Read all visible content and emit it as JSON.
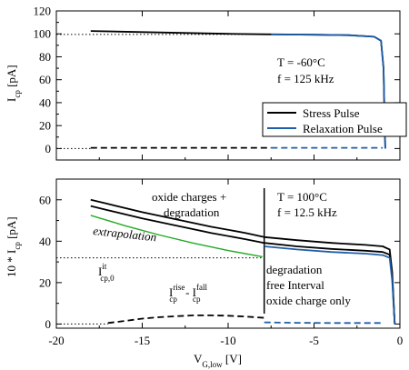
{
  "colors": {
    "stress": "#000000",
    "relaxation": "#1f5ea8",
    "extrapolation": "#22aa22",
    "reference": "#000000"
  },
  "chart_data": [
    {
      "type": "line",
      "panel": "top",
      "xlim": [
        -20,
        0
      ],
      "ylim": [
        -10,
        120
      ],
      "xticks": [
        -20,
        -15,
        -10,
        -5,
        0
      ],
      "yticks": [
        0,
        20,
        40,
        60,
        80,
        100,
        120
      ],
      "xtick_labels_shown": false,
      "ylabel_main": "I",
      "ylabel_sub": "cp",
      "ylabel_unit": " [pA]",
      "annotations": {
        "line1": "T = -60°C",
        "line2": "f = 125 kHz"
      },
      "legend": {
        "placement": "right-middle",
        "entries": [
          "Stress Pulse",
          "Relaxation Pulse"
        ]
      },
      "series": [
        {
          "name": "Stress Pulse",
          "style": "solid",
          "x": [
            -18,
            -15,
            -10,
            -8,
            -5,
            -3,
            -1.5,
            -1.1,
            -0.95,
            -0.9,
            -0.85
          ],
          "y": [
            102.5,
            101.5,
            100.0,
            99.6,
            99.2,
            98.8,
            97.5,
            94,
            70,
            30,
            0
          ]
        },
        {
          "name": "Relaxation Pulse",
          "style": "solid",
          "x": [
            -7.5,
            -5,
            -3,
            -1.5,
            -1.1,
            -0.95,
            -0.9,
            -0.85
          ],
          "y": [
            99.5,
            99.2,
            98.8,
            97.5,
            94,
            70,
            30,
            0
          ]
        },
        {
          "name": "reference",
          "style": "dotted",
          "x": [
            -20,
            -8
          ],
          "y": [
            99.5,
            99.5
          ]
        },
        {
          "name": "stress-baseline",
          "style": "dashed",
          "x": [
            -18,
            -7.5
          ],
          "y": [
            0.6,
            0.6
          ]
        },
        {
          "name": "relaxation-baseline",
          "style": "dashed",
          "x": [
            -7.5,
            -1
          ],
          "y": [
            0.6,
            0.6
          ]
        },
        {
          "name": "zero",
          "style": "dotted",
          "x": [
            -20,
            -18
          ],
          "y": [
            0,
            0
          ]
        }
      ]
    },
    {
      "type": "line",
      "panel": "bottom",
      "xlim": [
        -20,
        0
      ],
      "ylim": [
        -2,
        70
      ],
      "xticks": [
        -20,
        -15,
        -10,
        -5,
        0
      ],
      "yticks": [
        0,
        20,
        40,
        60
      ],
      "xlabel_main": "V",
      "xlabel_sub": "G,low",
      "xlabel_unit": " [V]",
      "ylabel_main": "10 * I",
      "ylabel_sub": "cp",
      "ylabel_unit": " [pA]",
      "annotations": {
        "oxide_line1": "oxide charges +",
        "oxide_line2": "degradation",
        "T": "T = 100°C",
        "f": "f = 12.5 kHz",
        "extrapolation": "extrapolation",
        "it_main": "I",
        "it_sup": "it",
        "it_sub": "cp,0",
        "diff_main1": "I",
        "diff_sup1": "rise",
        "diff_sub1": "cp",
        "diff_mid": " - I",
        "diff_sup2": "fall",
        "diff_sub2": "cp",
        "deg_line1": "degradation",
        "deg_line2": "free Interval",
        "deg_line3": "oxide charge only"
      },
      "divider_x": -7.9,
      "series": [
        {
          "name": "Stress Pulse (upper)",
          "style": "solid",
          "x": [
            -18,
            -17,
            -15,
            -13,
            -11,
            -9,
            -7.9,
            -6,
            -4,
            -2,
            -1,
            -0.6,
            -0.45,
            -0.3
          ],
          "y": [
            60,
            58,
            54,
            50.5,
            47,
            44,
            42,
            40.5,
            39.2,
            38.2,
            37.5,
            36,
            25,
            0
          ]
        },
        {
          "name": "Stress Pulse (lower)",
          "style": "solid",
          "x": [
            -18,
            -17,
            -15,
            -13,
            -11,
            -9,
            -7.9,
            -6,
            -4,
            -2,
            -1,
            -0.6,
            -0.45,
            -0.3
          ],
          "y": [
            57,
            55,
            51,
            47.5,
            44,
            41,
            39.2,
            37.5,
            36.3,
            35.4,
            34.8,
            33.5,
            23,
            0
          ]
        },
        {
          "name": "Relaxation Pulse",
          "style": "solid",
          "x": [
            -7.9,
            -6,
            -4,
            -2,
            -1,
            -0.6,
            -0.45,
            -0.3
          ],
          "y": [
            37.5,
            36,
            34.8,
            34,
            33.3,
            32,
            21,
            0
          ]
        },
        {
          "name": "extrapolation",
          "style": "solid",
          "x": [
            -18,
            -16,
            -14,
            -12,
            -10,
            -8
          ],
          "y": [
            52.5,
            47.5,
            43,
            39,
            35.5,
            32.5
          ]
        },
        {
          "name": "I_cp0_it",
          "style": "dotted",
          "x": [
            -20,
            -8
          ],
          "y": [
            32,
            32
          ]
        },
        {
          "name": "stress-difference",
          "style": "dashed",
          "x": [
            -17,
            -16,
            -15,
            -14,
            -13,
            -12,
            -11,
            -10,
            -9,
            -7.9
          ],
          "y": [
            0.5,
            1.5,
            2.6,
            3.3,
            3.8,
            4.2,
            4.2,
            4.0,
            3.6,
            3.0
          ]
        },
        {
          "name": "relaxation-difference",
          "style": "dashed",
          "x": [
            -7.9,
            -6,
            -4,
            -2,
            -1
          ],
          "y": [
            0.8,
            0.6,
            0.5,
            0.5,
            0.5
          ]
        },
        {
          "name": "zero",
          "style": "dotted",
          "x": [
            -20,
            -17
          ],
          "y": [
            0,
            0
          ]
        }
      ]
    }
  ]
}
